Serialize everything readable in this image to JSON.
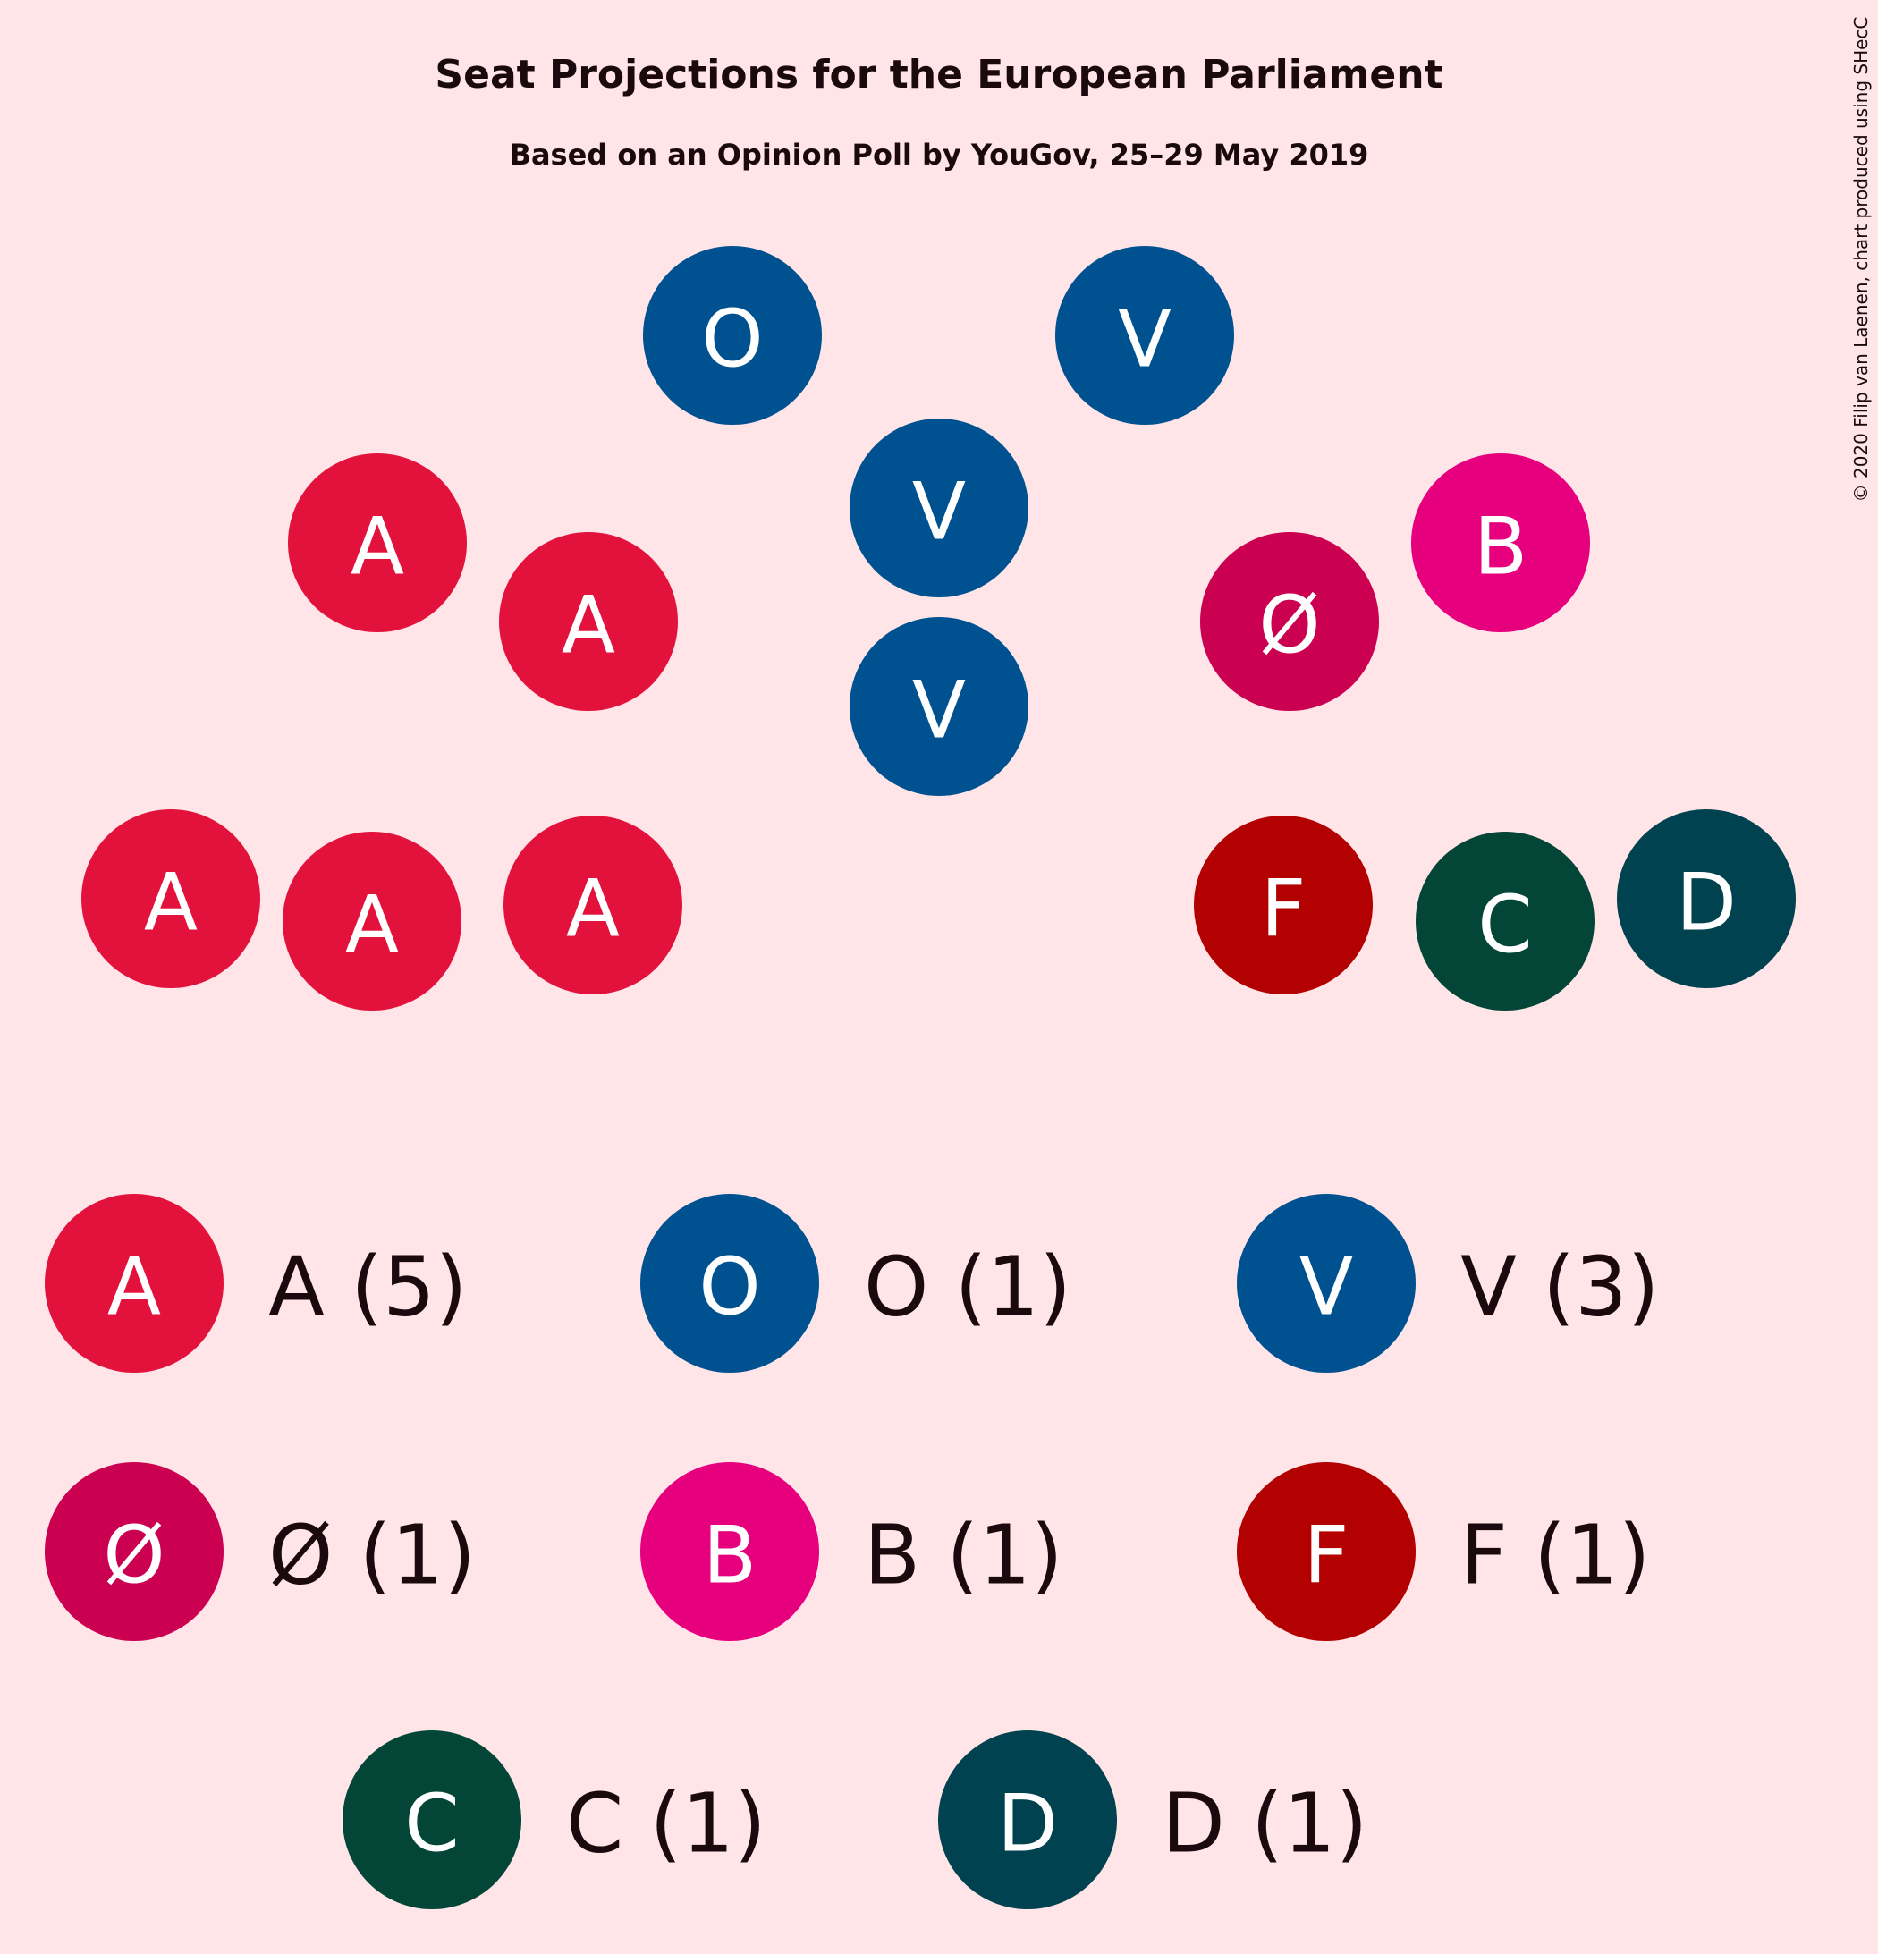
{
  "chart_data": {
    "type": "seat-projection",
    "title": "Seat Projections for the European Parliament",
    "subtitle": "Based on an Opinion Poll by YouGov, 25–29 May 2019",
    "copyright": "© 2020 Filip van Laenen, chart produced using SHecC",
    "parties": [
      {
        "letter": "A",
        "seats": 5,
        "color": "#E3123D",
        "legend": "A (5)"
      },
      {
        "letter": "O",
        "seats": 1,
        "color": "#00518F",
        "legend": "O (1)"
      },
      {
        "letter": "V",
        "seats": 3,
        "color": "#00518F",
        "legend": "V (3)"
      },
      {
        "letter": "Ø",
        "seats": 1,
        "color": "#CC0050",
        "legend": "Ø (1)"
      },
      {
        "letter": "B",
        "seats": 1,
        "color": "#E6007E",
        "legend": "B (1)"
      },
      {
        "letter": "F",
        "seats": 1,
        "color": "#B30000",
        "legend": "F (1)"
      },
      {
        "letter": "C",
        "seats": 1,
        "color": "#034536",
        "legend": "C (1)"
      },
      {
        "letter": "D",
        "seats": 1,
        "color": "#00424F",
        "legend": "D (1)"
      }
    ]
  }
}
